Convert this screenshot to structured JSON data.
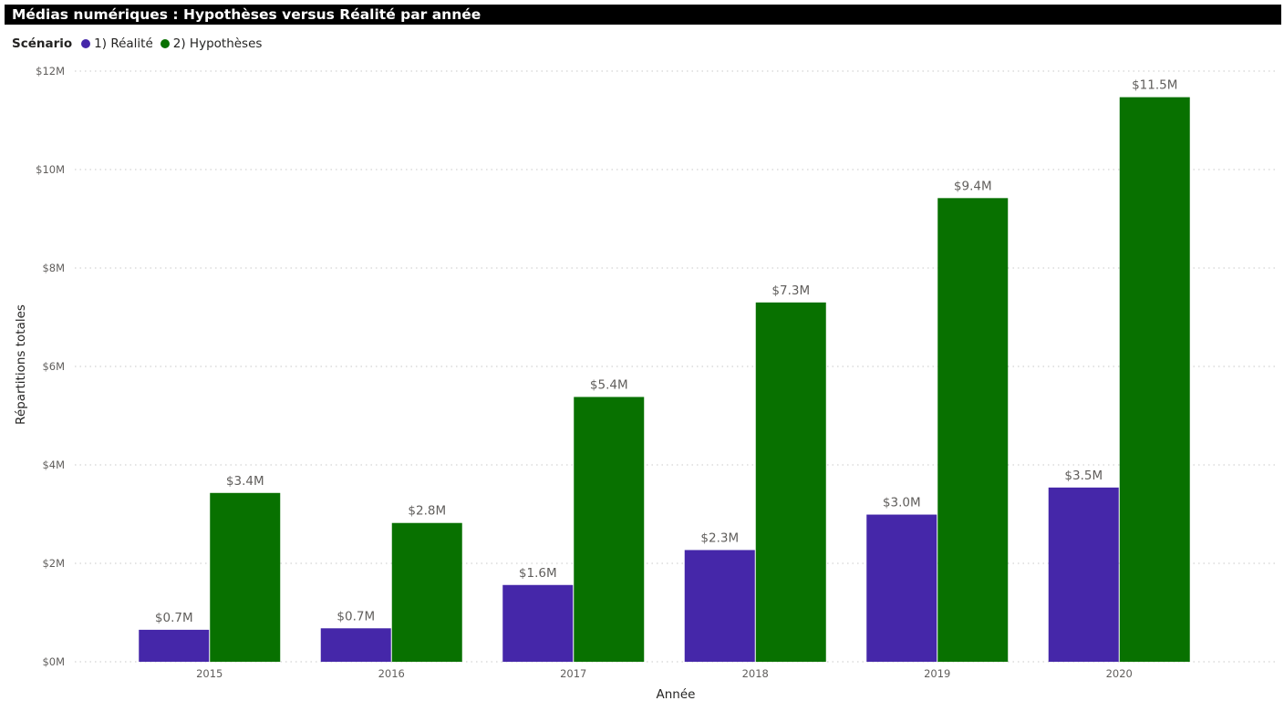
{
  "header": {
    "title": "Médias numériques : Hypothèses versus Réalité par année"
  },
  "legend": {
    "title": "Scénario",
    "items": [
      {
        "label": "1) Réalité",
        "color": "#4527A9"
      },
      {
        "label": "2) Hypothèses",
        "color": "#087100"
      }
    ]
  },
  "chart_data": {
    "type": "bar",
    "title": "Médias numériques : Hypothèses versus Réalité par année",
    "xlabel": "Année",
    "ylabel": "Répartitions totales",
    "categories": [
      "2015",
      "2016",
      "2017",
      "2018",
      "2019",
      "2020"
    ],
    "series": [
      {
        "name": "1) Réalité",
        "color": "#4527A9",
        "values": [
          0.65,
          0.68,
          1.56,
          2.27,
          2.99,
          3.54
        ],
        "labels": [
          "$0.7M",
          "$0.7M",
          "$1.6M",
          "$2.3M",
          "$3.0M",
          "$3.5M"
        ]
      },
      {
        "name": "2) Hypothèses",
        "color": "#087100",
        "values": [
          3.43,
          2.82,
          5.38,
          7.3,
          9.42,
          11.47
        ],
        "labels": [
          "$3.4M",
          "$2.8M",
          "$5.4M",
          "$7.3M",
          "$9.4M",
          "$11.5M"
        ]
      }
    ],
    "ylim": [
      0,
      12
    ],
    "yticks": [
      0,
      2,
      4,
      6,
      8,
      10,
      12
    ],
    "ytick_labels": [
      "$0M",
      "$2M",
      "$4M",
      "$6M",
      "$8M",
      "$10M",
      "$12M"
    ],
    "grid": true,
    "legend_position": "top-left"
  }
}
